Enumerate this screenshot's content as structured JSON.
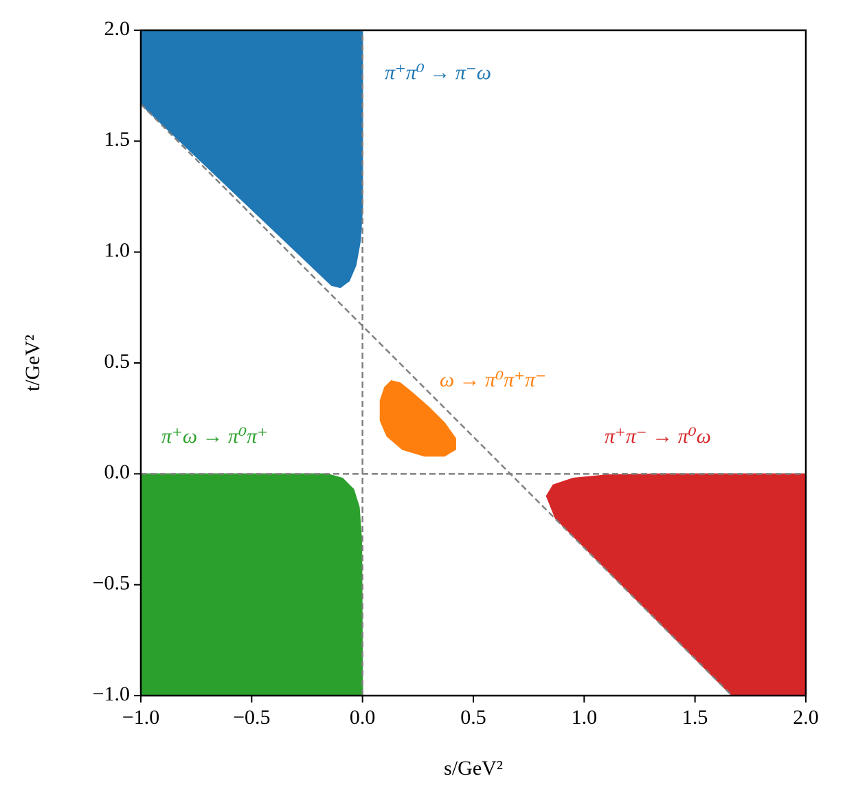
{
  "chart_data": {
    "type": "region",
    "xlabel": "s/GeV²",
    "ylabel": "t/GeV²",
    "xlim": [
      -1,
      2
    ],
    "ylim": [
      -1,
      2
    ],
    "xticks": [
      {
        "value": -1,
        "label": "−1.0"
      },
      {
        "value": -0.5,
        "label": "−0.5"
      },
      {
        "value": 0,
        "label": "0.0"
      },
      0.5,
      {
        "value": 1,
        "label": "1.0"
      },
      1.5,
      {
        "value": 2,
        "label": "2.0"
      }
    ],
    "yticks": [
      {
        "value": -1,
        "label": "−1.0"
      },
      {
        "value": -0.5,
        "label": "−0.5"
      },
      {
        "value": 0,
        "label": "0.0"
      },
      0.5,
      {
        "value": 1,
        "label": "1.0"
      },
      1.5,
      {
        "value": 2,
        "label": "2.0"
      }
    ],
    "series": [
      {
        "name": "π⁺π⁰ → π⁻ω",
        "color": "#1f77b4",
        "x": [
          -1,
          0,
          0,
          -0.01,
          -0.03,
          -0.06,
          -0.1,
          -0.14,
          -1
        ],
        "y": [
          2,
          2,
          1.2,
          1.05,
          0.94,
          0.87,
          0.84,
          0.85,
          1.667
        ]
      },
      {
        "name": "ω → π⁰π⁺π⁻",
        "color": "#ff7f0e",
        "x": [
          0.1,
          0.13,
          0.17,
          0.22,
          0.3,
          0.37,
          0.42,
          0.42,
          0.37,
          0.28,
          0.18,
          0.11,
          0.08,
          0.08
        ],
        "y": [
          0.39,
          0.42,
          0.41,
          0.37,
          0.3,
          0.23,
          0.16,
          0.11,
          0.08,
          0.08,
          0.11,
          0.17,
          0.24,
          0.33
        ]
      },
      {
        "name": "π⁺ω → π⁰π⁺",
        "color": "#2ca02c",
        "x": [
          -1,
          -0.16,
          -0.09,
          -0.04,
          -0.015,
          -0.004,
          0,
          -1
        ],
        "y": [
          0,
          0,
          -0.02,
          -0.07,
          -0.15,
          -0.3,
          -1,
          -1
        ]
      },
      {
        "name": "π⁺π⁻ → π⁰ω",
        "color": "#d62728",
        "x": [
          0.83,
          0.86,
          0.95,
          1.1,
          1.35,
          2,
          2,
          1.667,
          0.87
        ],
        "y": [
          -0.1,
          -0.05,
          -0.02,
          -0.005,
          0,
          0,
          -1,
          -1,
          -0.2
        ]
      }
    ],
    "reference_lines": {
      "color": "#808080",
      "lines": [
        {
          "x": [
            0,
            0
          ],
          "y": [
            -1,
            2
          ]
        },
        {
          "x": [
            -1,
            2
          ],
          "y": [
            0,
            0
          ]
        },
        {
          "x": [
            -1,
            1.667
          ],
          "y": [
            1.667,
            -1
          ]
        }
      ]
    }
  }
}
